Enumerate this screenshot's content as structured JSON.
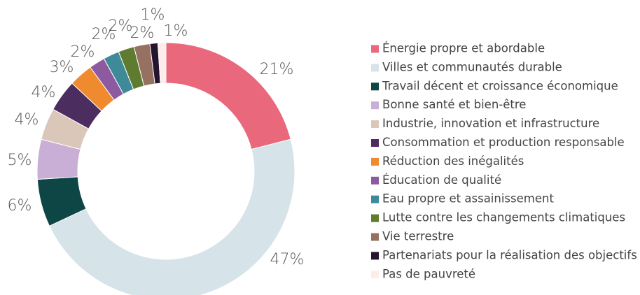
{
  "chart_data": {
    "type": "pie",
    "categories": [
      "Énergie propre et abordable",
      "Villes et communautés durable",
      "Travail décent et croissance économique",
      "Bonne santé et bien-être",
      "Industrie, innovation et infrastructure",
      "Consommation et production responsable",
      "Réduction des inégalités",
      "Éducation de qualité",
      "Eau propre et assainissement",
      "Lutte contre les changements climatiques",
      "Vie terrestre",
      "Partenariats pour la réalisation des objectifs",
      "Pas de pauvreté"
    ],
    "values": [
      21,
      47,
      6,
      5,
      4,
      4,
      3,
      2,
      2,
      2,
      2,
      1,
      1
    ],
    "value_labels": [
      "21%",
      "47%",
      "6%",
      "5%",
      "4%",
      "4%",
      "3%",
      "2%",
      "2%",
      "2%",
      "2%",
      "1%",
      "1%"
    ],
    "colors": [
      "#e9687b",
      "#d6e3e9",
      "#0e4646",
      "#c9afd5",
      "#dac7ba",
      "#4b2d5f",
      "#f08a2e",
      "#8e5a9f",
      "#3e8a99",
      "#5f7b2f",
      "#967161",
      "#25152f",
      "#fdecea"
    ]
  }
}
